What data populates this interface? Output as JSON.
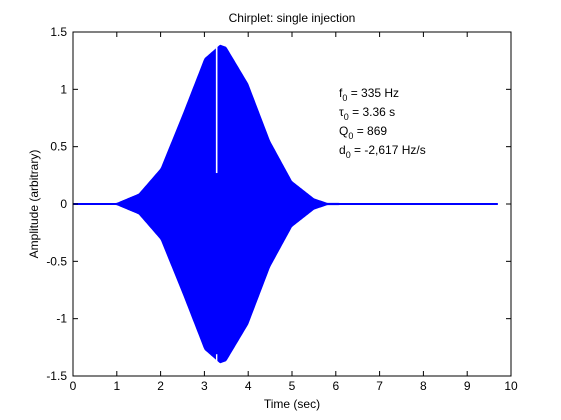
{
  "chart_data": {
    "type": "line",
    "title": "Chirplet: single injection",
    "xlabel": "Time (sec)",
    "ylabel": "Amplitude (arbitrary)",
    "xlim": [
      0,
      10
    ],
    "ylim": [
      -1.5,
      1.5
    ],
    "xticks": [
      0,
      1,
      2,
      3,
      4,
      5,
      6,
      7,
      8,
      9,
      10
    ],
    "xtick_labels": [
      "0",
      "1",
      "2",
      "3",
      "4",
      "5",
      "6",
      "7",
      "8",
      "9",
      "10"
    ],
    "yticks": [
      1.5,
      1,
      0.5,
      0,
      -0.5,
      -1,
      -1.5
    ],
    "ytick_labels": [
      "1.5",
      "1",
      "0.5",
      "0",
      "-0.5",
      "-1",
      "-1.5"
    ],
    "grid": false,
    "series": [
      {
        "color": "#0000ff",
        "signal": {
          "kind": "gaussian-modulated chirp",
          "peak_amplitude": 1.39,
          "center_time": 3.36,
          "x_start": 0,
          "x_end": 9.7,
          "gap_at": 3.28
        },
        "envelope": {
          "x": [
            0.0,
            0.8,
            1.0,
            1.5,
            2.0,
            2.5,
            3.0,
            3.36,
            3.5,
            4.0,
            4.5,
            5.0,
            5.5,
            5.8,
            9.7
          ],
          "y": [
            0.0,
            0.0,
            0.01,
            0.09,
            0.31,
            0.78,
            1.27,
            1.39,
            1.37,
            1.05,
            0.55,
            0.2,
            0.05,
            0.01,
            0.0
          ]
        }
      }
    ],
    "annotations": [
      {
        "base": "f",
        "sub": "0",
        "rest": " = 335 Hz"
      },
      {
        "base": "τ",
        "sub": "0",
        "rest": " = 3.36 s"
      },
      {
        "base": "Q",
        "sub": "0",
        "rest": " = 869"
      },
      {
        "base": "d",
        "sub": "0",
        "rest": " = -2,617 Hz/s"
      }
    ]
  }
}
